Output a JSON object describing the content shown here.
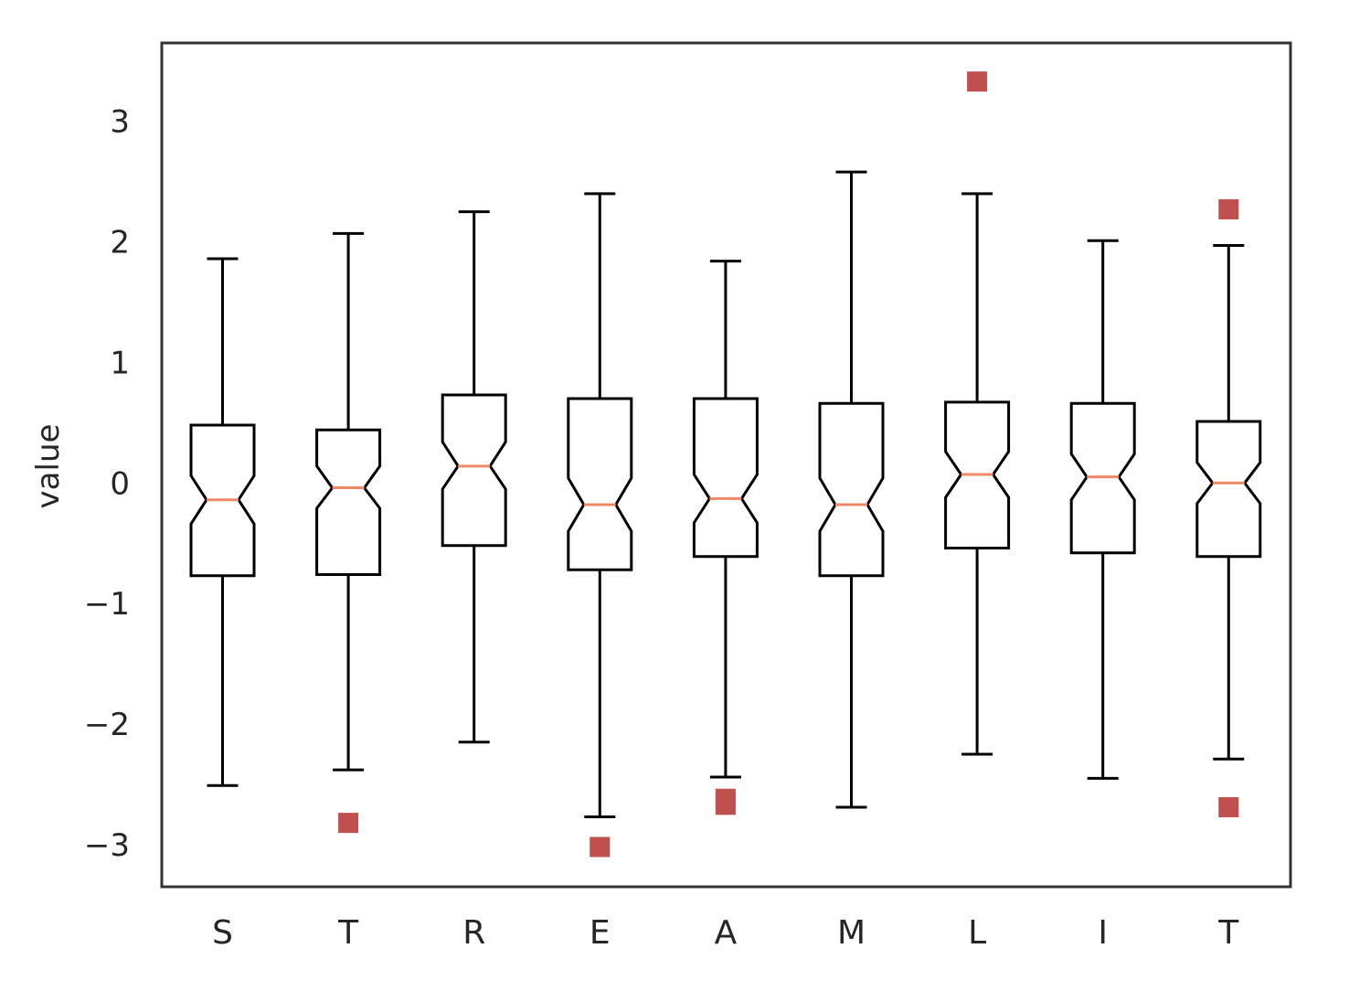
{
  "chart_data": {
    "type": "boxplot",
    "title": "",
    "xlabel": "",
    "ylabel": "value",
    "ylim": [
      -3.35,
      3.65
    ],
    "yticks": [
      -3,
      -2,
      -1,
      0,
      1,
      2,
      3
    ],
    "ytick_labels": [
      "−3",
      "−2",
      "−1",
      "0",
      "1",
      "2",
      "3"
    ],
    "grid": false,
    "notched": true,
    "categories": [
      "S",
      "T",
      "R",
      "E",
      "A",
      "M",
      "L",
      "I",
      "T"
    ],
    "boxes": [
      {
        "label": "S",
        "whisker_low": -2.51,
        "q1": -0.77,
        "median": -0.14,
        "q3": 0.48,
        "whisker_high": 1.86,
        "notch_low": -0.34,
        "notch_high": 0.06,
        "outliers": []
      },
      {
        "label": "T",
        "whisker_low": -2.38,
        "q1": -0.76,
        "median": -0.04,
        "q3": 0.44,
        "whisker_high": 2.07,
        "notch_low": -0.21,
        "notch_high": 0.14,
        "outliers": [
          -2.82
        ]
      },
      {
        "label": "R",
        "whisker_low": -2.15,
        "q1": -0.52,
        "median": 0.14,
        "q3": 0.73,
        "whisker_high": 2.25,
        "notch_low": -0.05,
        "notch_high": 0.34,
        "outliers": []
      },
      {
        "label": "E",
        "whisker_low": -2.77,
        "q1": -0.72,
        "median": -0.18,
        "q3": 0.7,
        "whisker_high": 2.4,
        "notch_low": -0.4,
        "notch_high": 0.04,
        "outliers": [
          -3.02
        ]
      },
      {
        "label": "A",
        "whisker_low": -2.44,
        "q1": -0.61,
        "median": -0.13,
        "q3": 0.7,
        "whisker_high": 1.84,
        "notch_low": -0.33,
        "notch_high": 0.07,
        "outliers": [
          -2.62,
          -2.67
        ]
      },
      {
        "label": "M",
        "whisker_low": -2.69,
        "q1": -0.77,
        "median": -0.18,
        "q3": 0.66,
        "whisker_high": 2.58,
        "notch_low": -0.4,
        "notch_high": 0.04,
        "outliers": []
      },
      {
        "label": "L",
        "whisker_low": -2.25,
        "q1": -0.54,
        "median": 0.07,
        "q3": 0.67,
        "whisker_high": 2.4,
        "notch_low": -0.12,
        "notch_high": 0.26,
        "outliers": [
          3.33
        ]
      },
      {
        "label": "I",
        "whisker_low": -2.45,
        "q1": -0.58,
        "median": 0.05,
        "q3": 0.66,
        "whisker_high": 2.01,
        "notch_low": -0.14,
        "notch_high": 0.24,
        "outliers": []
      },
      {
        "label": "T",
        "whisker_low": -2.29,
        "q1": -0.61,
        "median": 0.0,
        "q3": 0.51,
        "whisker_high": 1.97,
        "notch_low": -0.17,
        "notch_high": 0.17,
        "outliers": [
          2.27,
          -2.69
        ]
      }
    ],
    "colors": {
      "box": "#000000",
      "median": "#ee8866",
      "outlier": "#c0504d",
      "frame": "#333333",
      "text": "#262626"
    }
  }
}
